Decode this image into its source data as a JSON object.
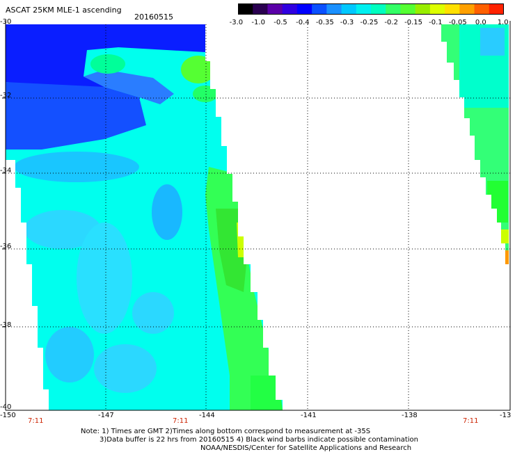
{
  "header": {
    "title": "ASCAT 25KM MLE-1 ascending",
    "date": "20160515"
  },
  "colorbar": {
    "ticks": [
      "-3.0",
      "-1.0",
      "-0.5",
      "-0.4",
      "-0.35",
      "-0.3",
      "-0.25",
      "-0.2",
      "-0.15",
      "-0.1",
      "-0.05",
      "0.0",
      "1.0"
    ],
    "colors": [
      "#000000",
      "#5a00a8",
      "#0000ff",
      "#0a5cff",
      "#1aa6ff",
      "#00ddff",
      "#00ffe6",
      "#33ff66",
      "#33dd33",
      "#99ee00",
      "#ffe000",
      "#ff8800",
      "#ff2200"
    ]
  },
  "map": {
    "lat_labels": [
      "-30",
      "-32",
      "-34",
      "-36",
      "-38",
      "-40"
    ],
    "lon_labels": [
      "-150",
      "-147",
      "-144",
      "-141",
      "-138",
      "-13"
    ],
    "time_labels": [
      "7:11",
      "7:11",
      "7:11"
    ]
  },
  "footer": {
    "line1": "Note: 1) Times are GMT 2)Times along bottom correspond to measurement at -35S",
    "line2": "3)Data buffer is 22 hrs from 20160515 4) Black wind barbs indicate possible contamination",
    "line3": "NOAA/NESDIS/Center for Satellite Applications and Research"
  }
}
